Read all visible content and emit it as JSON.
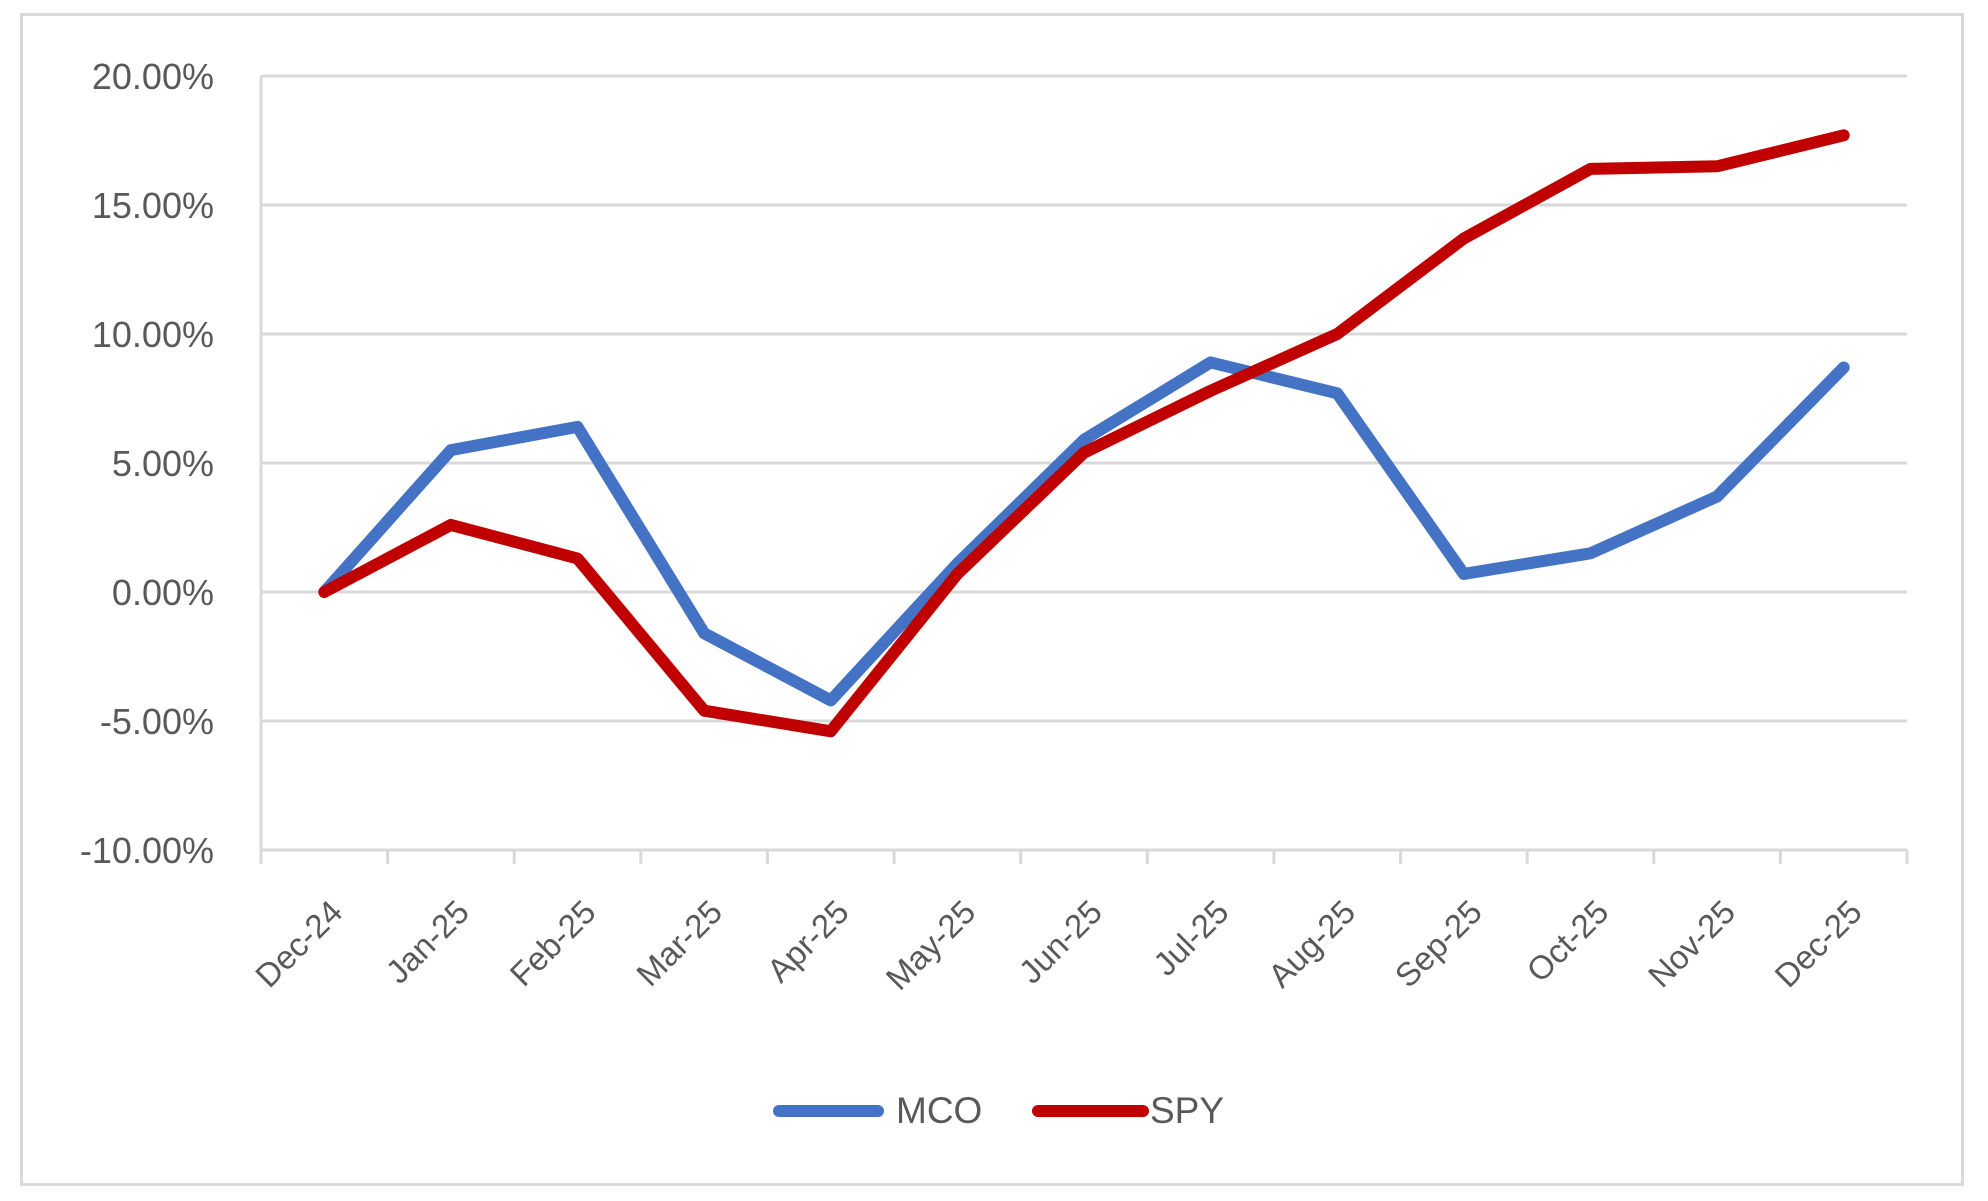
{
  "chart_data": {
    "type": "line",
    "title": "",
    "xlabel": "",
    "ylabel": "",
    "categories": [
      "Dec-24",
      "Jan-25",
      "Feb-25",
      "Mar-25",
      "Apr-25",
      "May-25",
      "Jun-25",
      "Jul-25",
      "Aug-25",
      "Sep-25",
      "Oct-25",
      "Nov-25",
      "Dec-25"
    ],
    "series": [
      {
        "name": "MCO",
        "color": "#4472C4",
        "values": [
          0.0,
          5.5,
          6.4,
          -1.6,
          -4.2,
          1.1,
          5.9,
          8.9,
          7.7,
          0.7,
          1.5,
          3.7,
          8.7
        ]
      },
      {
        "name": "SPY",
        "color": "#C00000",
        "values": [
          0.0,
          2.6,
          1.3,
          -4.6,
          -5.4,
          0.7,
          5.4,
          7.8,
          10.0,
          13.7,
          16.4,
          16.5,
          17.7
        ]
      }
    ],
    "ylim": [
      -10,
      20
    ],
    "yticks": [
      20,
      15,
      10,
      5,
      0,
      -5,
      -10
    ],
    "ytick_labels": [
      "20.00%",
      "15.00%",
      "10.00%",
      "5.00%",
      "0.00%",
      "-5.00%",
      "-10.00%"
    ],
    "units": "percent",
    "grid": true,
    "legend_position": "bottom"
  },
  "legend": {
    "items": [
      {
        "label": "MCO",
        "color": "#4472C4"
      },
      {
        "label": "SPY",
        "color": "#C00000"
      }
    ]
  }
}
